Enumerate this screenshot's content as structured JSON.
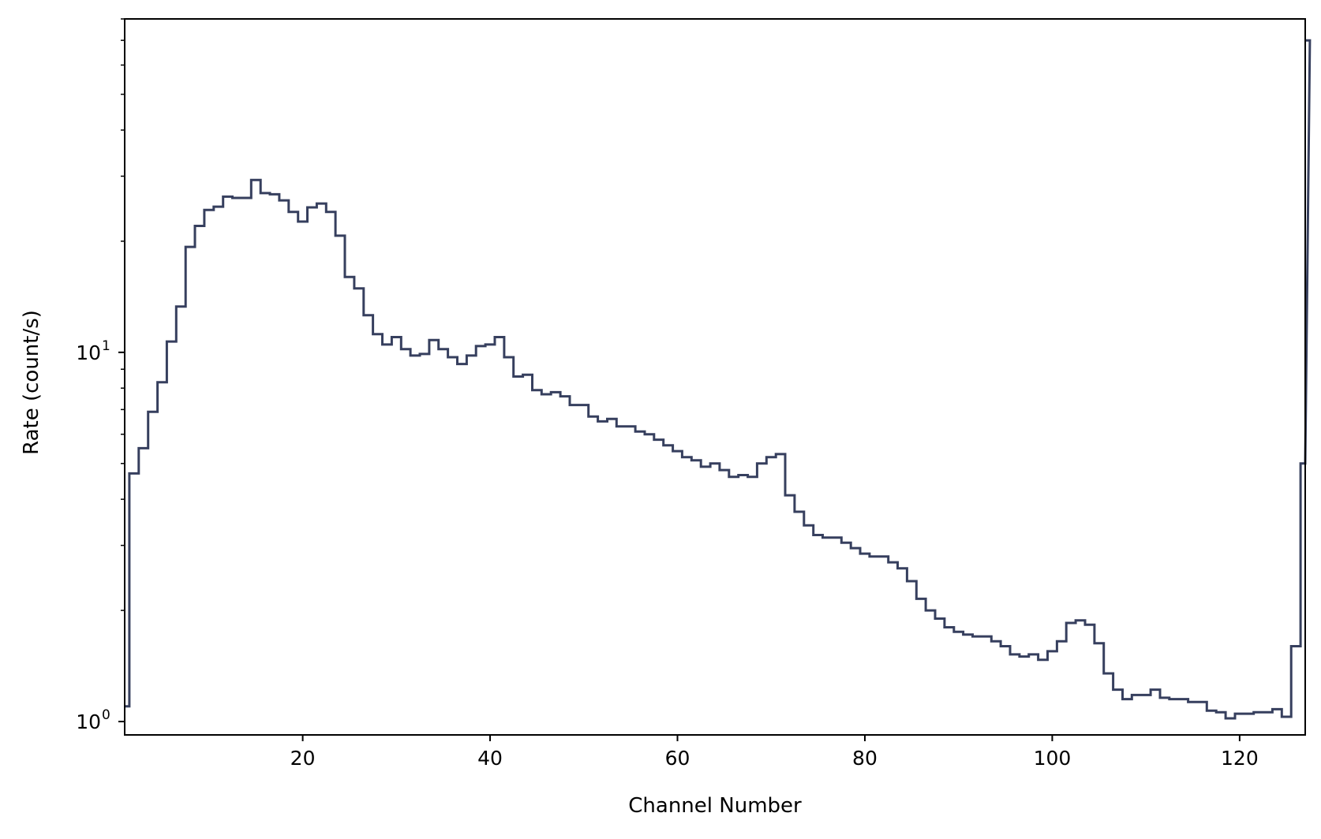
{
  "chart_data": {
    "type": "line",
    "style": "step",
    "xlabel": "Channel Number",
    "ylabel": "Rate (count/s)",
    "xlim": [
      1,
      127
    ],
    "ylim": [
      0.92,
      80
    ],
    "yscale": "log",
    "grid": false,
    "legend": false,
    "line_color": "#363f5e",
    "xticks": [
      20,
      40,
      60,
      80,
      100,
      120
    ],
    "yticks": [
      {
        "value": 1,
        "base": "10",
        "exp": "0"
      },
      {
        "value": 10,
        "base": "10",
        "exp": "1"
      }
    ],
    "series": [
      {
        "channel_start": 1,
        "values": [
          1.1,
          4.7,
          5.5,
          6.9,
          8.3,
          10.7,
          13.3,
          19.3,
          22.0,
          24.3,
          24.8,
          26.4,
          26.2,
          26.2,
          29.3,
          27.0,
          26.8,
          25.8,
          24.0,
          22.6,
          24.7,
          25.3,
          24.0,
          20.7,
          16.0,
          14.9,
          12.6,
          11.2,
          10.5,
          11.0,
          10.2,
          9.8,
          9.9,
          10.8,
          10.2,
          9.7,
          9.3,
          9.8,
          10.4,
          10.5,
          11.0,
          9.7,
          8.6,
          8.7,
          7.9,
          7.7,
          7.8,
          7.6,
          7.2,
          7.2,
          6.7,
          6.5,
          6.6,
          6.3,
          6.3,
          6.1,
          6.0,
          5.8,
          5.6,
          5.4,
          5.2,
          5.1,
          4.9,
          5.0,
          4.8,
          4.6,
          4.65,
          4.6,
          5.0,
          5.2,
          5.3,
          4.1,
          3.7,
          3.4,
          3.2,
          3.15,
          3.15,
          3.05,
          2.95,
          2.85,
          2.8,
          2.8,
          2.7,
          2.6,
          2.4,
          2.15,
          2.0,
          1.9,
          1.8,
          1.75,
          1.72,
          1.7,
          1.7,
          1.65,
          1.6,
          1.52,
          1.5,
          1.52,
          1.47,
          1.55,
          1.65,
          1.85,
          1.88,
          1.83,
          1.63,
          1.35,
          1.22,
          1.15,
          1.18,
          1.18,
          1.22,
          1.16,
          1.15,
          1.15,
          1.13,
          1.13,
          1.07,
          1.06,
          1.02,
          1.05,
          1.05,
          1.06,
          1.06,
          1.08,
          1.03,
          1.6,
          5.0,
          70.0
        ]
      }
    ]
  }
}
